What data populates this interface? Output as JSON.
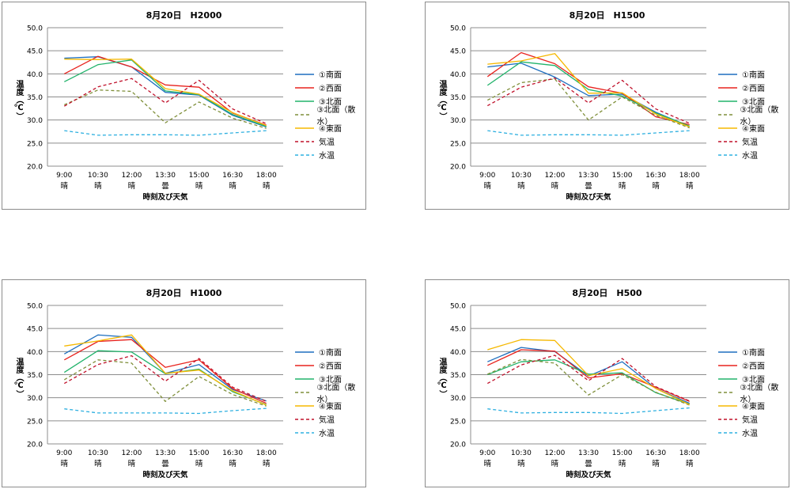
{
  "chart_data": [
    {
      "type": "line",
      "title": "8月20日　H2000",
      "ylabel": "温度（℃）",
      "xlabel": "時刻及び天気",
      "ylim": [
        20.0,
        50.0
      ],
      "yticks": [
        "20.0",
        "25.0",
        "30.0",
        "35.0",
        "40.0",
        "45.0",
        "50.0"
      ],
      "categories": [
        "9:00",
        "10:30",
        "12:00",
        "13:30",
        "15:00",
        "16:30",
        "18:00"
      ],
      "weather": [
        "晴",
        "晴",
        "晴",
        "曇",
        "晴",
        "晴",
        "晴"
      ],
      "series": [
        {
          "name": "①南面",
          "color": "#1f6fbf",
          "dash": "solid",
          "values": [
            43.4,
            43.7,
            41.5,
            36.0,
            35.4,
            31.0,
            28.5
          ]
        },
        {
          "name": "②西面",
          "color": "#e8231e",
          "dash": "solid",
          "values": [
            40.0,
            43.8,
            41.5,
            37.6,
            37.1,
            31.5,
            28.9
          ]
        },
        {
          "name": "③北面",
          "color": "#22b36b",
          "dash": "solid",
          "values": [
            38.3,
            42.0,
            43.0,
            36.3,
            35.5,
            31.2,
            28.6
          ]
        },
        {
          "name": "③北面（散水）",
          "color": "#7f8f3a",
          "dash": "dashed",
          "values": [
            33.3,
            36.5,
            36.2,
            29.4,
            33.9,
            30.4,
            28.2
          ]
        },
        {
          "name": "④東面",
          "color": "#f5b800",
          "dash": "solid",
          "values": [
            43.2,
            43.1,
            43.2,
            36.8,
            35.6,
            31.6,
            28.8
          ]
        },
        {
          "name": "気温",
          "color": "#c0102a",
          "dash": "dashed",
          "values": [
            33.0,
            37.2,
            39.0,
            33.7,
            38.6,
            32.4,
            29.2
          ]
        },
        {
          "name": "水温",
          "color": "#2fb0e0",
          "dash": "dashed",
          "values": [
            27.7,
            26.7,
            26.8,
            26.8,
            26.7,
            27.2,
            27.7
          ]
        }
      ]
    },
    {
      "type": "line",
      "title": "8月20日　H1500",
      "ylabel": "温度（℃）",
      "xlabel": "時刻及び天気",
      "ylim": [
        20.0,
        50.0
      ],
      "yticks": [
        "20.0",
        "25.0",
        "30.0",
        "35.0",
        "40.0",
        "45.0",
        "50.0"
      ],
      "categories": [
        "9:00",
        "10:30",
        "12:00",
        "13:30",
        "15:00",
        "16:30",
        "18:00"
      ],
      "weather": [
        "晴",
        "晴",
        "晴",
        "曇",
        "晴",
        "晴",
        "晴"
      ],
      "series": [
        {
          "name": "①南面",
          "color": "#1f6fbf",
          "dash": "solid",
          "values": [
            41.5,
            42.3,
            39.3,
            35.3,
            35.6,
            31.7,
            28.6
          ]
        },
        {
          "name": "②西面",
          "color": "#e8231e",
          "dash": "solid",
          "values": [
            39.4,
            44.6,
            42.2,
            37.2,
            35.8,
            30.7,
            29.0
          ]
        },
        {
          "name": "③北面",
          "color": "#22b36b",
          "dash": "solid",
          "values": [
            37.5,
            42.6,
            41.8,
            36.6,
            35.2,
            31.5,
            28.7
          ]
        },
        {
          "name": "③北面（散水）",
          "color": "#7f8f3a",
          "dash": "dashed",
          "values": [
            34.3,
            38.1,
            38.9,
            30.0,
            35.0,
            31.0,
            28.3
          ]
        },
        {
          "name": "④東面",
          "color": "#f5b800",
          "dash": "solid",
          "values": [
            42.1,
            42.8,
            44.4,
            35.8,
            35.9,
            31.3,
            28.5
          ]
        },
        {
          "name": "気温",
          "color": "#c0102a",
          "dash": "dashed",
          "values": [
            33.1,
            37.1,
            39.1,
            33.7,
            38.6,
            32.4,
            29.3
          ]
        },
        {
          "name": "水温",
          "color": "#2fb0e0",
          "dash": "dashed",
          "values": [
            27.7,
            26.7,
            26.8,
            26.8,
            26.7,
            27.2,
            27.7
          ]
        }
      ]
    },
    {
      "type": "line",
      "title": "8月20日　H1000",
      "ylabel": "温度（℃）",
      "xlabel": "時刻及び天気",
      "ylim": [
        20.0,
        50.0
      ],
      "yticks": [
        "20.0",
        "25.0",
        "30.0",
        "35.0",
        "40.0",
        "45.0",
        "50.0"
      ],
      "categories": [
        "9:00",
        "10:30",
        "12:00",
        "13:30",
        "15:00",
        "16:30",
        "18:00"
      ],
      "weather": [
        "晴",
        "晴",
        "晴",
        "曇",
        "晴",
        "晴",
        "晴"
      ],
      "series": [
        {
          "name": "①南面",
          "color": "#1f6fbf",
          "dash": "solid",
          "values": [
            39.5,
            43.6,
            43.1,
            35.3,
            37.2,
            31.8,
            29.3
          ]
        },
        {
          "name": "②西面",
          "color": "#e8231e",
          "dash": "solid",
          "values": [
            38.2,
            42.2,
            42.6,
            36.6,
            38.2,
            32.0,
            28.8
          ]
        },
        {
          "name": "③北面",
          "color": "#22b36b",
          "dash": "solid",
          "values": [
            35.5,
            40.2,
            39.9,
            35.2,
            36.2,
            31.3,
            28.5
          ]
        },
        {
          "name": "③北面（散水）",
          "color": "#7f8f3a",
          "dash": "dashed",
          "values": [
            33.9,
            38.2,
            37.5,
            29.2,
            34.6,
            30.7,
            28.2
          ]
        },
        {
          "name": "④東面",
          "color": "#f5b800",
          "dash": "solid",
          "values": [
            41.2,
            42.3,
            43.6,
            35.3,
            36.0,
            31.5,
            28.4
          ]
        },
        {
          "name": "気温",
          "color": "#c0102a",
          "dash": "dashed",
          "values": [
            33.1,
            37.2,
            39.1,
            33.6,
            38.5,
            32.3,
            29.2
          ]
        },
        {
          "name": "水温",
          "color": "#2fb0e0",
          "dash": "dashed",
          "values": [
            27.6,
            26.7,
            26.7,
            26.7,
            26.6,
            27.2,
            27.7
          ]
        }
      ]
    },
    {
      "type": "line",
      "title": "8月20日　H500",
      "ylabel": "温度（℃）",
      "xlabel": "時刻及び天気",
      "ylim": [
        20.0,
        50.0
      ],
      "yticks": [
        "20.0",
        "25.0",
        "30.0",
        "35.0",
        "40.0",
        "45.0",
        "50.0"
      ],
      "categories": [
        "9:00",
        "10:30",
        "12:00",
        "13:30",
        "15:00",
        "16:30",
        "18:00"
      ],
      "weather": [
        "晴",
        "晴",
        "晴",
        "曇",
        "晴",
        "晴",
        "晴"
      ],
      "series": [
        {
          "name": "①南面",
          "color": "#1f6fbf",
          "dash": "solid",
          "values": [
            37.8,
            40.9,
            40.0,
            34.7,
            37.8,
            32.0,
            28.8
          ]
        },
        {
          "name": "②西面",
          "color": "#e8231e",
          "dash": "solid",
          "values": [
            37.0,
            40.4,
            40.1,
            34.3,
            35.2,
            32.3,
            29.2
          ]
        },
        {
          "name": "③北面",
          "color": "#22b36b",
          "dash": "solid",
          "values": [
            35.0,
            37.8,
            38.2,
            35.1,
            35.4,
            31.1,
            28.6
          ]
        },
        {
          "name": "③北面（散水）",
          "color": "#7f8f3a",
          "dash": "dashed",
          "values": [
            35.1,
            38.3,
            37.5,
            30.6,
            35.0,
            31.2,
            28.4
          ]
        },
        {
          "name": "④東面",
          "color": "#f5b800",
          "dash": "solid",
          "values": [
            40.4,
            42.6,
            42.4,
            34.8,
            36.3,
            32.0,
            28.5
          ]
        },
        {
          "name": "気温",
          "color": "#c0102a",
          "dash": "dashed",
          "values": [
            33.1,
            37.1,
            39.2,
            33.7,
            38.5,
            32.4,
            29.3
          ]
        },
        {
          "name": "水温",
          "color": "#2fb0e0",
          "dash": "dashed",
          "values": [
            27.6,
            26.7,
            26.8,
            26.8,
            26.6,
            27.2,
            27.8
          ]
        }
      ]
    }
  ]
}
